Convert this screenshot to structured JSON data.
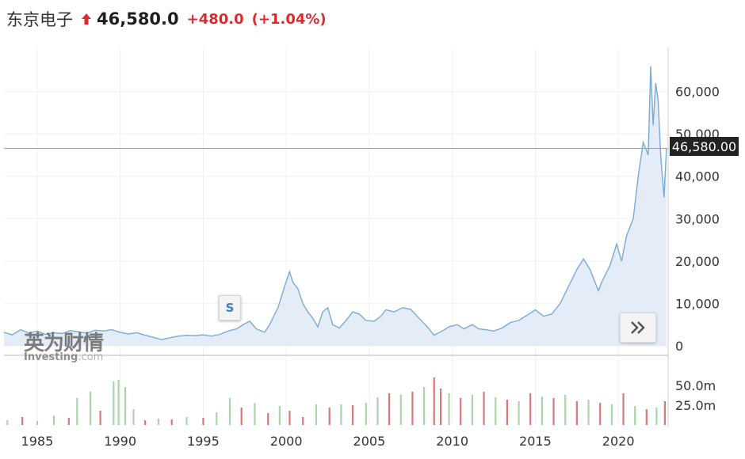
{
  "header": {
    "stock_name": "东京电子",
    "price": "46,580.0",
    "change": "+480.0",
    "change_pct": "(+1.04%)",
    "up_color": "#e0292f"
  },
  "price_tag": "46,580.00",
  "event_marker": "S",
  "watermark": {
    "cn": "英为财情",
    "en_main": "Investing",
    "en_suffix": ".com"
  },
  "colors": {
    "line": "#7aaad6",
    "area": "#e4edf7",
    "current_line": "#f08080",
    "volume_up": "#a9d6a9",
    "volume_down": "#d9777a"
  },
  "chart_data": [
    {
      "type": "area",
      "series": [
        {
          "values": [
            {
              "x": 1983.0,
              "y": 3200
            },
            {
              "x": 1983.5,
              "y": 2600
            },
            {
              "x": 1984.0,
              "y": 3800
            },
            {
              "x": 1984.5,
              "y": 3000
            },
            {
              "x": 1985.0,
              "y": 3500
            },
            {
              "x": 1985.5,
              "y": 2700
            },
            {
              "x": 1986.0,
              "y": 3100
            },
            {
              "x": 1986.5,
              "y": 2900
            },
            {
              "x": 1987.0,
              "y": 3600
            },
            {
              "x": 1987.5,
              "y": 3300
            },
            {
              "x": 1988.0,
              "y": 3000
            },
            {
              "x": 1988.5,
              "y": 3700
            },
            {
              "x": 1989.0,
              "y": 3500
            },
            {
              "x": 1989.5,
              "y": 3800
            },
            {
              "x": 1990.0,
              "y": 3200
            },
            {
              "x": 1990.5,
              "y": 2800
            },
            {
              "x": 1991.0,
              "y": 3100
            },
            {
              "x": 1991.5,
              "y": 2500
            },
            {
              "x": 1992.0,
              "y": 2000
            },
            {
              "x": 1992.5,
              "y": 1500
            },
            {
              "x": 1993.0,
              "y": 1900
            },
            {
              "x": 1993.5,
              "y": 2300
            },
            {
              "x": 1994.0,
              "y": 2500
            },
            {
              "x": 1994.5,
              "y": 2400
            },
            {
              "x": 1995.0,
              "y": 2600
            },
            {
              "x": 1995.5,
              "y": 2300
            },
            {
              "x": 1996.0,
              "y": 2700
            },
            {
              "x": 1996.5,
              "y": 3500
            },
            {
              "x": 1997.0,
              "y": 4000
            },
            {
              "x": 1997.5,
              "y": 5200
            },
            {
              "x": 1997.8,
              "y": 5800
            },
            {
              "x": 1998.2,
              "y": 4000
            },
            {
              "x": 1998.7,
              "y": 3200
            },
            {
              "x": 1999.0,
              "y": 5000
            },
            {
              "x": 1999.5,
              "y": 9000
            },
            {
              "x": 1999.9,
              "y": 14000
            },
            {
              "x": 2000.2,
              "y": 17500
            },
            {
              "x": 2000.4,
              "y": 15000
            },
            {
              "x": 2000.7,
              "y": 13500
            },
            {
              "x": 2001.0,
              "y": 10000
            },
            {
              "x": 2001.3,
              "y": 8000
            },
            {
              "x": 2001.6,
              "y": 6500
            },
            {
              "x": 2001.9,
              "y": 4500
            },
            {
              "x": 2002.2,
              "y": 8000
            },
            {
              "x": 2002.5,
              "y": 9000
            },
            {
              "x": 2002.8,
              "y": 5000
            },
            {
              "x": 2003.2,
              "y": 4200
            },
            {
              "x": 2003.6,
              "y": 6000
            },
            {
              "x": 2004.0,
              "y": 8000
            },
            {
              "x": 2004.4,
              "y": 7500
            },
            {
              "x": 2004.8,
              "y": 6000
            },
            {
              "x": 2005.3,
              "y": 5800
            },
            {
              "x": 2005.7,
              "y": 7000
            },
            {
              "x": 2006.0,
              "y": 8500
            },
            {
              "x": 2006.5,
              "y": 8000
            },
            {
              "x": 2007.0,
              "y": 9000
            },
            {
              "x": 2007.5,
              "y": 8600
            },
            {
              "x": 2008.0,
              "y": 6500
            },
            {
              "x": 2008.5,
              "y": 4500
            },
            {
              "x": 2008.9,
              "y": 2500
            },
            {
              "x": 2009.4,
              "y": 3500
            },
            {
              "x": 2009.8,
              "y": 4500
            },
            {
              "x": 2010.3,
              "y": 5000
            },
            {
              "x": 2010.7,
              "y": 4000
            },
            {
              "x": 2011.2,
              "y": 5000
            },
            {
              "x": 2011.6,
              "y": 4000
            },
            {
              "x": 2012.0,
              "y": 3800
            },
            {
              "x": 2012.5,
              "y": 3500
            },
            {
              "x": 2013.0,
              "y": 4200
            },
            {
              "x": 2013.5,
              "y": 5500
            },
            {
              "x": 2014.0,
              "y": 6000
            },
            {
              "x": 2014.5,
              "y": 7200
            },
            {
              "x": 2015.0,
              "y": 8500
            },
            {
              "x": 2015.5,
              "y": 7000
            },
            {
              "x": 2016.0,
              "y": 7500
            },
            {
              "x": 2016.5,
              "y": 10000
            },
            {
              "x": 2017.0,
              "y": 14000
            },
            {
              "x": 2017.5,
              "y": 18000
            },
            {
              "x": 2017.9,
              "y": 20500
            },
            {
              "x": 2018.3,
              "y": 18000
            },
            {
              "x": 2018.8,
              "y": 13000
            },
            {
              "x": 2019.0,
              "y": 15000
            },
            {
              "x": 2019.5,
              "y": 19000
            },
            {
              "x": 2019.9,
              "y": 24000
            },
            {
              "x": 2020.2,
              "y": 20000
            },
            {
              "x": 2020.5,
              "y": 26000
            },
            {
              "x": 2020.9,
              "y": 30000
            },
            {
              "x": 2021.2,
              "y": 40000
            },
            {
              "x": 2021.5,
              "y": 48000
            },
            {
              "x": 2021.8,
              "y": 45000
            },
            {
              "x": 2021.95,
              "y": 66000
            },
            {
              "x": 2022.1,
              "y": 52000
            },
            {
              "x": 2022.25,
              "y": 62000
            },
            {
              "x": 2022.4,
              "y": 58000
            },
            {
              "x": 2022.55,
              "y": 45000
            },
            {
              "x": 2022.75,
              "y": 35000
            },
            {
              "x": 2022.9,
              "y": 46580
            }
          ]
        }
      ],
      "xlim": [
        1983.0,
        2023.0
      ],
      "ylim": [
        0,
        70000
      ],
      "y_ticks": [
        "0",
        "10,000",
        "20,000",
        "30,000",
        "40,000",
        "50,000",
        "60,000"
      ],
      "y_tick_values": [
        0,
        10000,
        20000,
        30000,
        40000,
        50000,
        60000
      ],
      "x_ticks": [
        "1985",
        "1990",
        "1995",
        "2000",
        "2005",
        "2010",
        "2015",
        "2020"
      ],
      "x_tick_values": [
        1985,
        1990,
        1995,
        2000,
        2005,
        2010,
        2015,
        2020
      ],
      "reference_line": 46580,
      "grid": true
    },
    {
      "type": "bar",
      "series": [
        {
          "values": [
            {
              "x": 1983.2,
              "y": 6,
              "up": true
            },
            {
              "x": 1984.1,
              "y": 10,
              "up": false
            },
            {
              "x": 1985.0,
              "y": 5,
              "up": true
            },
            {
              "x": 1986.0,
              "y": 12,
              "up": true
            },
            {
              "x": 1986.9,
              "y": 9,
              "up": false
            },
            {
              "x": 1987.4,
              "y": 34,
              "up": true
            },
            {
              "x": 1988.2,
              "y": 42,
              "up": true
            },
            {
              "x": 1988.8,
              "y": 18,
              "up": false
            },
            {
              "x": 1989.6,
              "y": 55,
              "up": true
            },
            {
              "x": 1989.9,
              "y": 57,
              "up": true
            },
            {
              "x": 1990.3,
              "y": 48,
              "up": true
            },
            {
              "x": 1990.8,
              "y": 20,
              "up": true
            },
            {
              "x": 1991.5,
              "y": 6,
              "up": false
            },
            {
              "x": 1992.3,
              "y": 8,
              "up": true
            },
            {
              "x": 1993.1,
              "y": 7,
              "up": false
            },
            {
              "x": 1994.0,
              "y": 10,
              "up": true
            },
            {
              "x": 1995.0,
              "y": 9,
              "up": false
            },
            {
              "x": 1995.8,
              "y": 16,
              "up": true
            },
            {
              "x": 1996.6,
              "y": 34,
              "up": true
            },
            {
              "x": 1997.3,
              "y": 22,
              "up": false
            },
            {
              "x": 1998.1,
              "y": 28,
              "up": true
            },
            {
              "x": 1998.9,
              "y": 15,
              "up": false
            },
            {
              "x": 1999.6,
              "y": 24,
              "up": true
            },
            {
              "x": 2000.2,
              "y": 18,
              "up": false
            },
            {
              "x": 2001.0,
              "y": 10,
              "up": false
            },
            {
              "x": 2001.8,
              "y": 26,
              "up": true
            },
            {
              "x": 2002.6,
              "y": 22,
              "up": false
            },
            {
              "x": 2003.3,
              "y": 26,
              "up": true
            },
            {
              "x": 2004.0,
              "y": 25,
              "up": false
            },
            {
              "x": 2004.8,
              "y": 28,
              "up": true
            },
            {
              "x": 2005.5,
              "y": 35,
              "up": true
            },
            {
              "x": 2006.2,
              "y": 40,
              "up": false
            },
            {
              "x": 2006.9,
              "y": 38,
              "up": true
            },
            {
              "x": 2007.6,
              "y": 42,
              "up": false
            },
            {
              "x": 2008.3,
              "y": 48,
              "up": true
            },
            {
              "x": 2008.9,
              "y": 60,
              "up": false
            },
            {
              "x": 2009.3,
              "y": 46,
              "up": false
            },
            {
              "x": 2009.8,
              "y": 40,
              "up": true
            },
            {
              "x": 2010.5,
              "y": 34,
              "up": false
            },
            {
              "x": 2011.2,
              "y": 38,
              "up": true
            },
            {
              "x": 2011.9,
              "y": 42,
              "up": false
            },
            {
              "x": 2012.6,
              "y": 35,
              "up": true
            },
            {
              "x": 2013.3,
              "y": 32,
              "up": false
            },
            {
              "x": 2014.0,
              "y": 30,
              "up": true
            },
            {
              "x": 2014.7,
              "y": 40,
              "up": false
            },
            {
              "x": 2015.4,
              "y": 36,
              "up": true
            },
            {
              "x": 2016.1,
              "y": 34,
              "up": false
            },
            {
              "x": 2016.8,
              "y": 38,
              "up": true
            },
            {
              "x": 2017.5,
              "y": 30,
              "up": false
            },
            {
              "x": 2018.2,
              "y": 32,
              "up": true
            },
            {
              "x": 2018.9,
              "y": 28,
              "up": false
            },
            {
              "x": 2019.6,
              "y": 26,
              "up": true
            },
            {
              "x": 2020.3,
              "y": 40,
              "up": false
            },
            {
              "x": 2021.0,
              "y": 24,
              "up": true
            },
            {
              "x": 2021.7,
              "y": 20,
              "up": false
            },
            {
              "x": 2022.3,
              "y": 22,
              "up": true
            },
            {
              "x": 2022.8,
              "y": 30,
              "up": false
            }
          ]
        }
      ],
      "xlim": [
        1983.0,
        2023.0
      ],
      "ylim": [
        0,
        75
      ],
      "y_ticks": [
        "25.0m",
        "50.0m"
      ],
      "y_tick_values": [
        25,
        50
      ]
    }
  ]
}
